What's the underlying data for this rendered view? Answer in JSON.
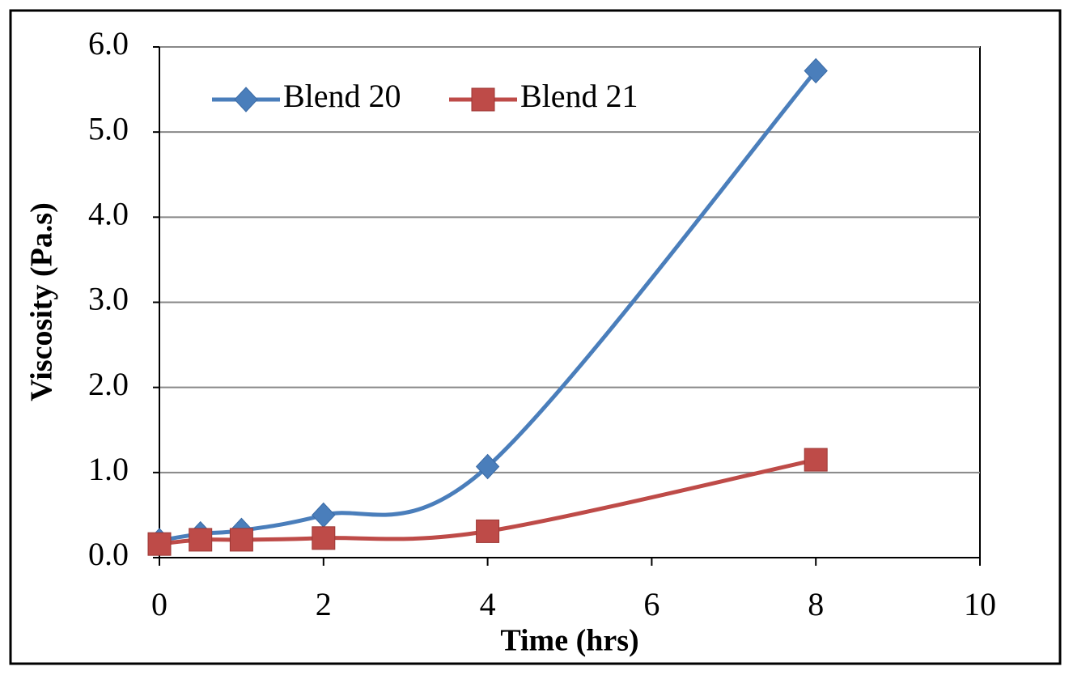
{
  "chart_data": {
    "type": "line",
    "x_label": "Time (hrs)",
    "y_label": "Viscosity (Pa.s)",
    "x": [
      0,
      0.5,
      1,
      2,
      4,
      8
    ],
    "series": [
      {
        "name": "Blend 20",
        "color": "#4a7ebb",
        "marker": "diamond",
        "values": [
          0.2,
          0.28,
          0.32,
          0.5,
          1.07,
          5.72
        ]
      },
      {
        "name": "Blend 21",
        "color": "#be4b48",
        "marker": "square",
        "values": [
          0.16,
          0.21,
          0.21,
          0.23,
          0.31,
          1.15
        ]
      }
    ],
    "xlim": [
      0,
      10
    ],
    "xticks": [
      0,
      2,
      4,
      6,
      8,
      10
    ],
    "ylim": [
      0,
      6
    ],
    "yticks": [
      {
        "value": 0,
        "label": "0.0"
      },
      {
        "value": 1,
        "label": "1.0"
      },
      {
        "value": 2,
        "label": "2.0"
      },
      {
        "value": 3,
        "label": "3.0"
      },
      {
        "value": 4,
        "label": "4.0"
      },
      {
        "value": 5,
        "label": "5.0"
      },
      {
        "value": 6,
        "label": "6.0"
      }
    ],
    "grid": true,
    "smooth": true,
    "legend": "upper left"
  }
}
